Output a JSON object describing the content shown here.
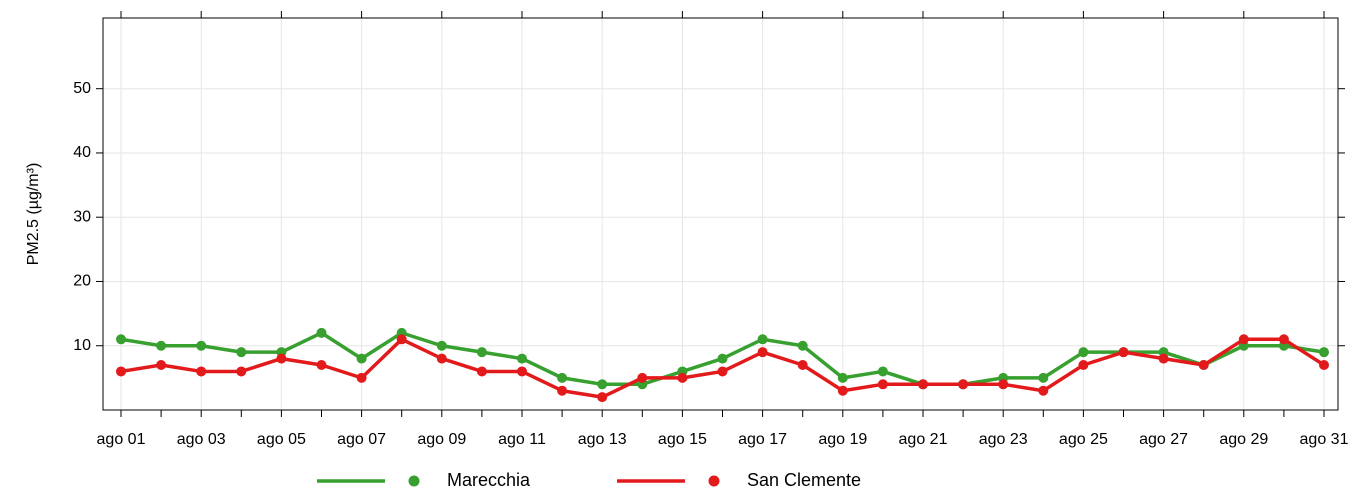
{
  "chart_data": {
    "type": "line",
    "y_label": "PM2.5 (µg/m³)",
    "categories": [
      "ago 01",
      null,
      "ago 03",
      null,
      "ago 05",
      null,
      "ago 07",
      null,
      "ago 09",
      null,
      "ago 11",
      null,
      "ago 13",
      null,
      "ago 15",
      null,
      "ago 17",
      null,
      "ago 19",
      null,
      "ago 21",
      null,
      "ago 23",
      null,
      "ago 25",
      null,
      "ago 27",
      null,
      "ago 29",
      null,
      "ago 31"
    ],
    "series": [
      {
        "name": "Marecchia",
        "color": "#37a02f",
        "values": [
          11,
          10,
          10,
          9,
          9,
          12,
          8,
          12,
          10,
          9,
          8,
          5,
          4,
          4,
          6,
          8,
          11,
          10,
          5,
          6,
          4,
          4,
          5,
          5,
          9,
          9,
          9,
          7,
          10,
          10,
          9
        ]
      },
      {
        "name": "San Clemente",
        "color": "#e31a1c",
        "values": [
          6,
          7,
          6,
          6,
          8,
          7,
          5,
          11,
          8,
          6,
          6,
          3,
          2,
          5,
          5,
          6,
          9,
          7,
          3,
          4,
          4,
          4,
          4,
          3,
          7,
          9,
          8,
          7,
          11,
          11,
          7
        ]
      }
    ],
    "ylim": [
      0,
      61
    ],
    "yticks": [
      10,
      20,
      30,
      40,
      50
    ],
    "grid": true,
    "legend": "bottom"
  }
}
